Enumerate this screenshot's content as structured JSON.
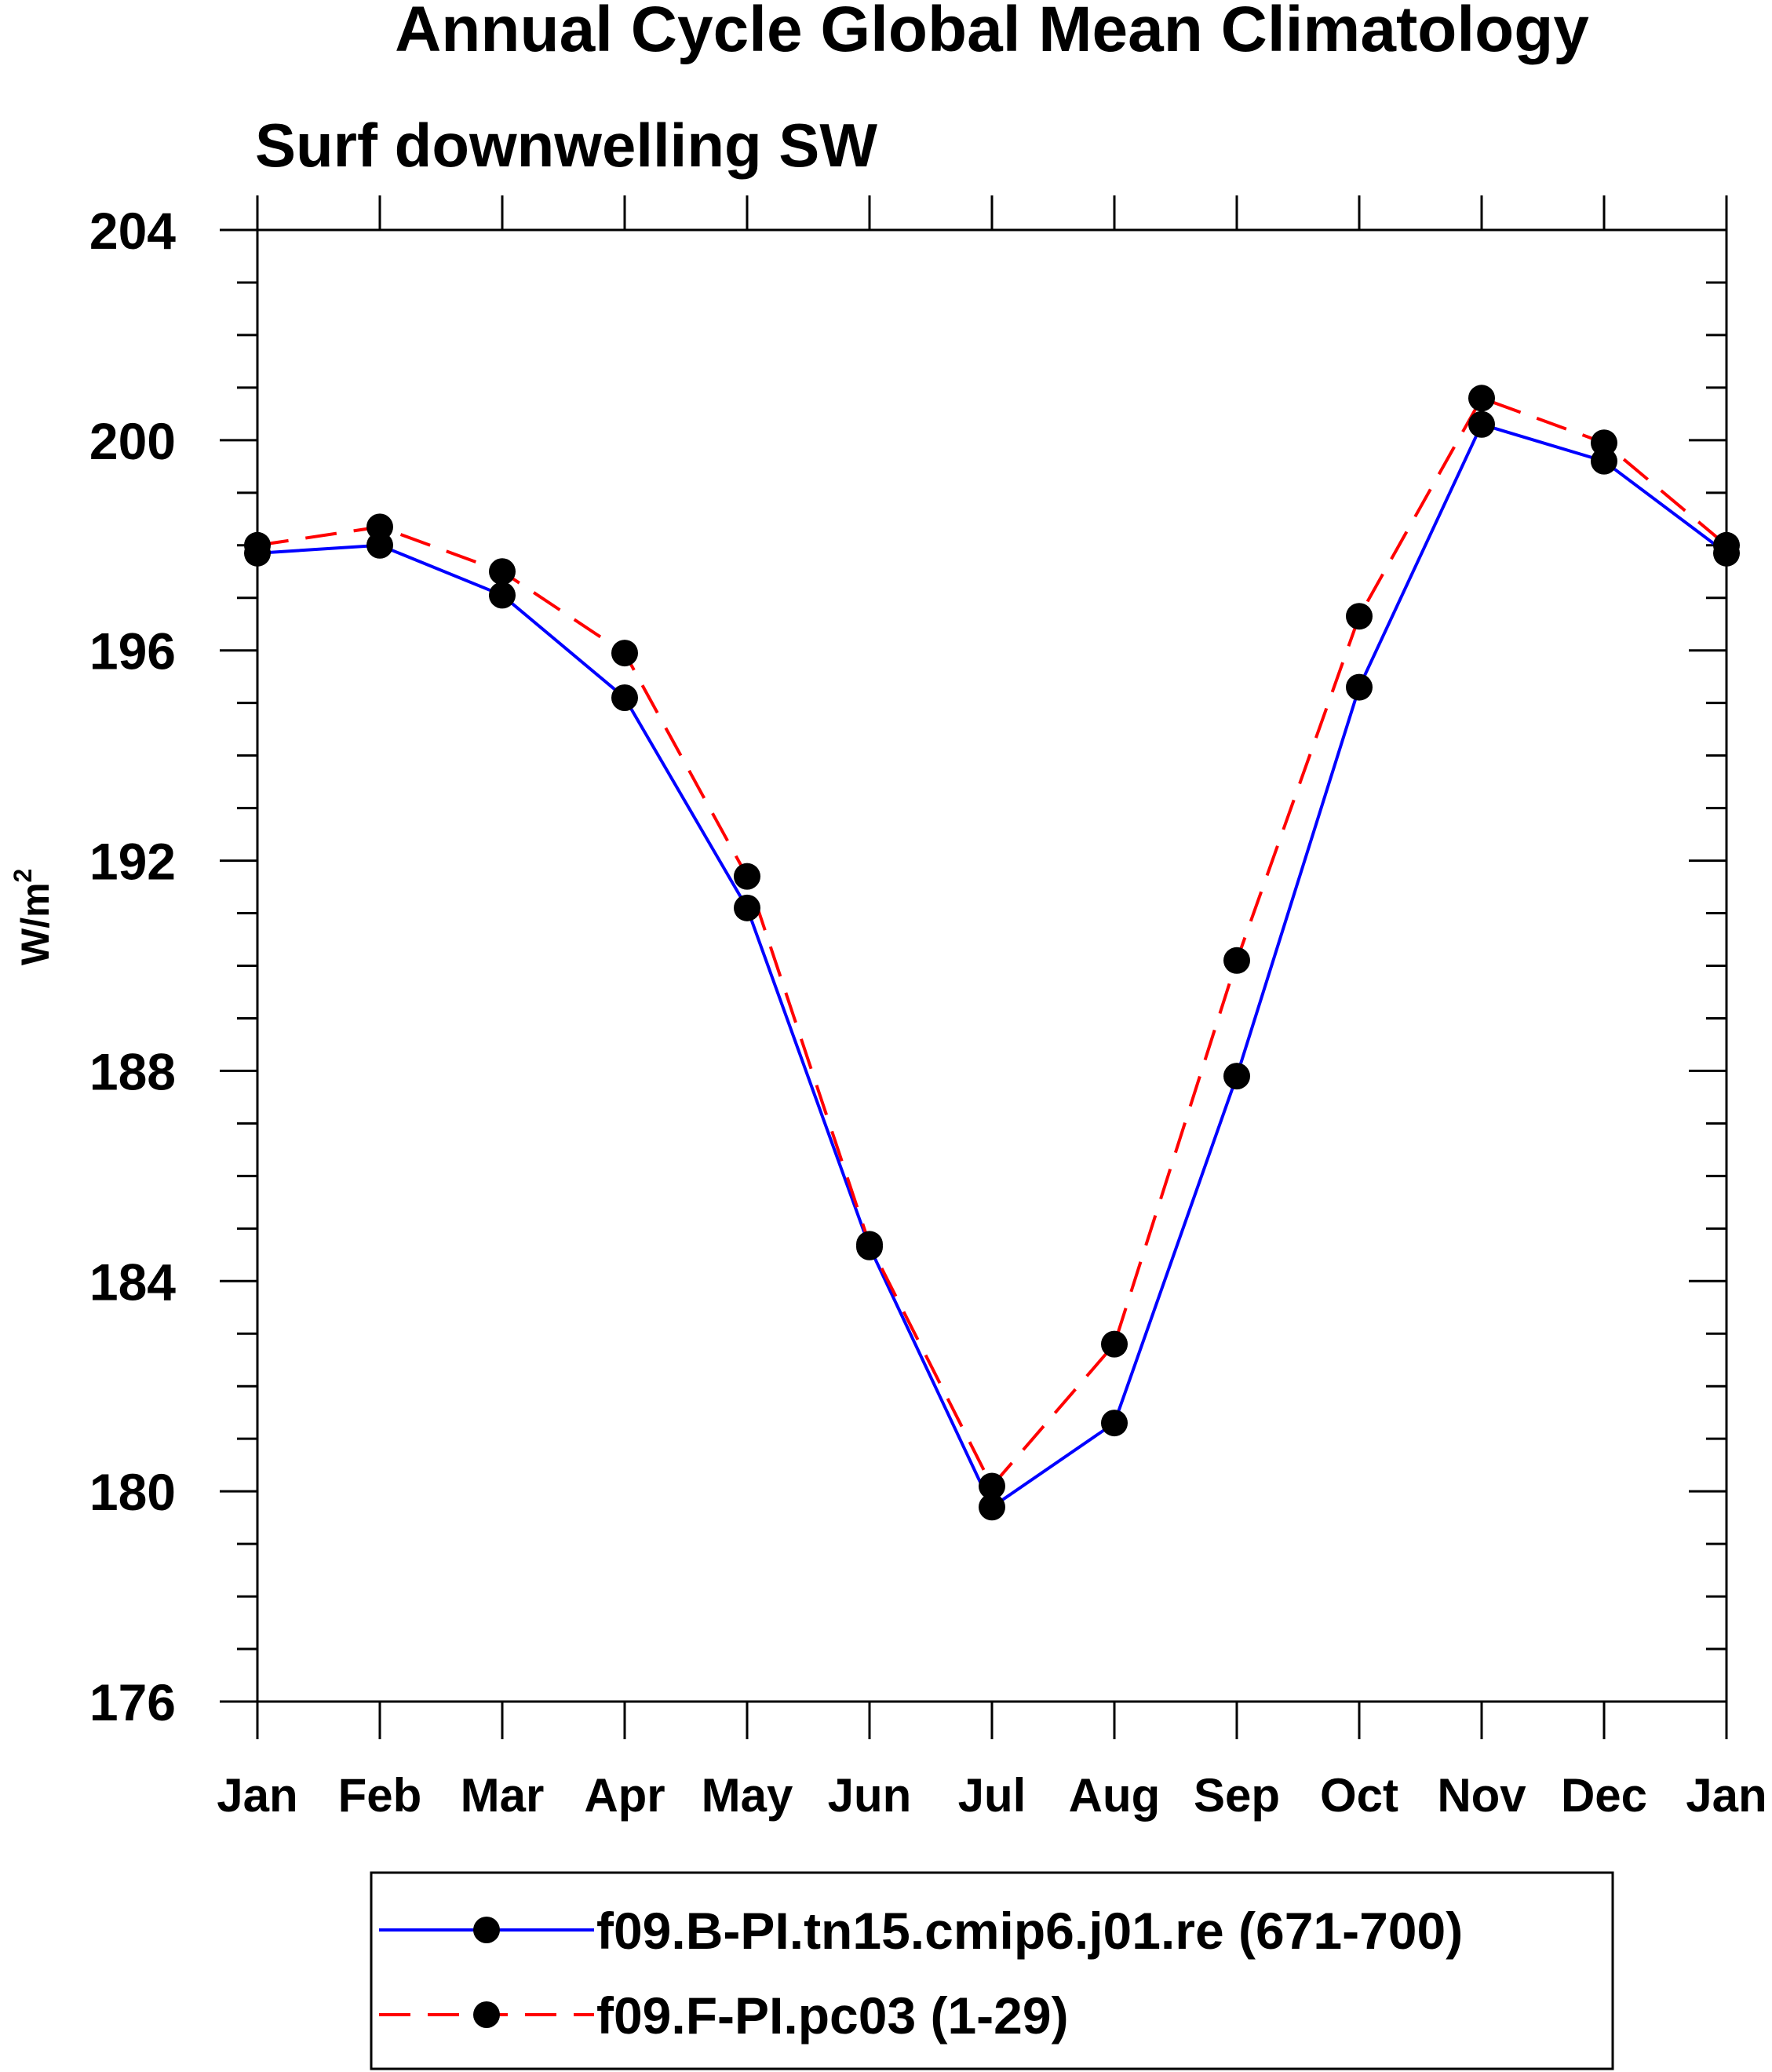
{
  "chart_data": {
    "type": "line",
    "title": "Annual Cycle Global Mean Climatology",
    "subtitle": "Surf downwelling SW",
    "ylabel": "W/m",
    "ylabel_sup": "2",
    "xlabel": "",
    "categories": [
      "Jan",
      "Feb",
      "Mar",
      "Apr",
      "May",
      "Jun",
      "Jul",
      "Aug",
      "Sep",
      "Oct",
      "Nov",
      "Dec",
      "Jan"
    ],
    "ylim": [
      176,
      204
    ],
    "yticks": [
      176,
      180,
      184,
      188,
      192,
      196,
      200,
      204
    ],
    "yticks_labels": [
      "176",
      "180",
      "184",
      "188",
      "192",
      "196",
      "200",
      "204"
    ],
    "series": [
      {
        "name": "f09.B-PI.tn15.cmip6.j01.re (671-700)",
        "color": "#0000ff",
        "dash": "solid",
        "values": [
          197.85,
          198.0,
          197.05,
          195.1,
          191.1,
          184.65,
          179.7,
          181.3,
          187.9,
          195.3,
          200.3,
          199.6,
          197.85
        ]
      },
      {
        "name": "f09.F-PI.pc03 (1-29)",
        "color": "#ff0000",
        "dash": "dashed",
        "values": [
          198.0,
          198.35,
          197.5,
          195.95,
          191.7,
          184.7,
          180.1,
          182.8,
          190.1,
          196.65,
          200.8,
          199.95,
          198.0
        ]
      }
    ],
    "legend_position": "bottom"
  }
}
